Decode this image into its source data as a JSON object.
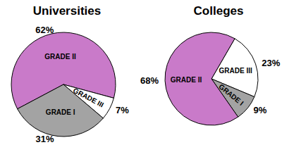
{
  "chart_data": [
    {
      "type": "pie",
      "title": "Universities",
      "categories": [
        "GRADE II",
        "GRADE III",
        "GRADE I"
      ],
      "values": [
        62,
        7,
        31
      ],
      "value_labels": [
        "62%",
        "7%",
        "31%"
      ],
      "colors": [
        "#c97ac9",
        "#ffffff",
        "#a3a3a3"
      ],
      "data_labels": true
    },
    {
      "type": "pie",
      "title": "Colleges",
      "categories": [
        "GRADE III",
        "GRADE I",
        "GRADE II"
      ],
      "values": [
        23,
        9,
        68
      ],
      "value_labels": [
        "23%",
        "9%",
        "68%"
      ],
      "colors": [
        "#ffffff",
        "#a3a3a3",
        "#c97ac9"
      ],
      "data_labels": true
    }
  ]
}
